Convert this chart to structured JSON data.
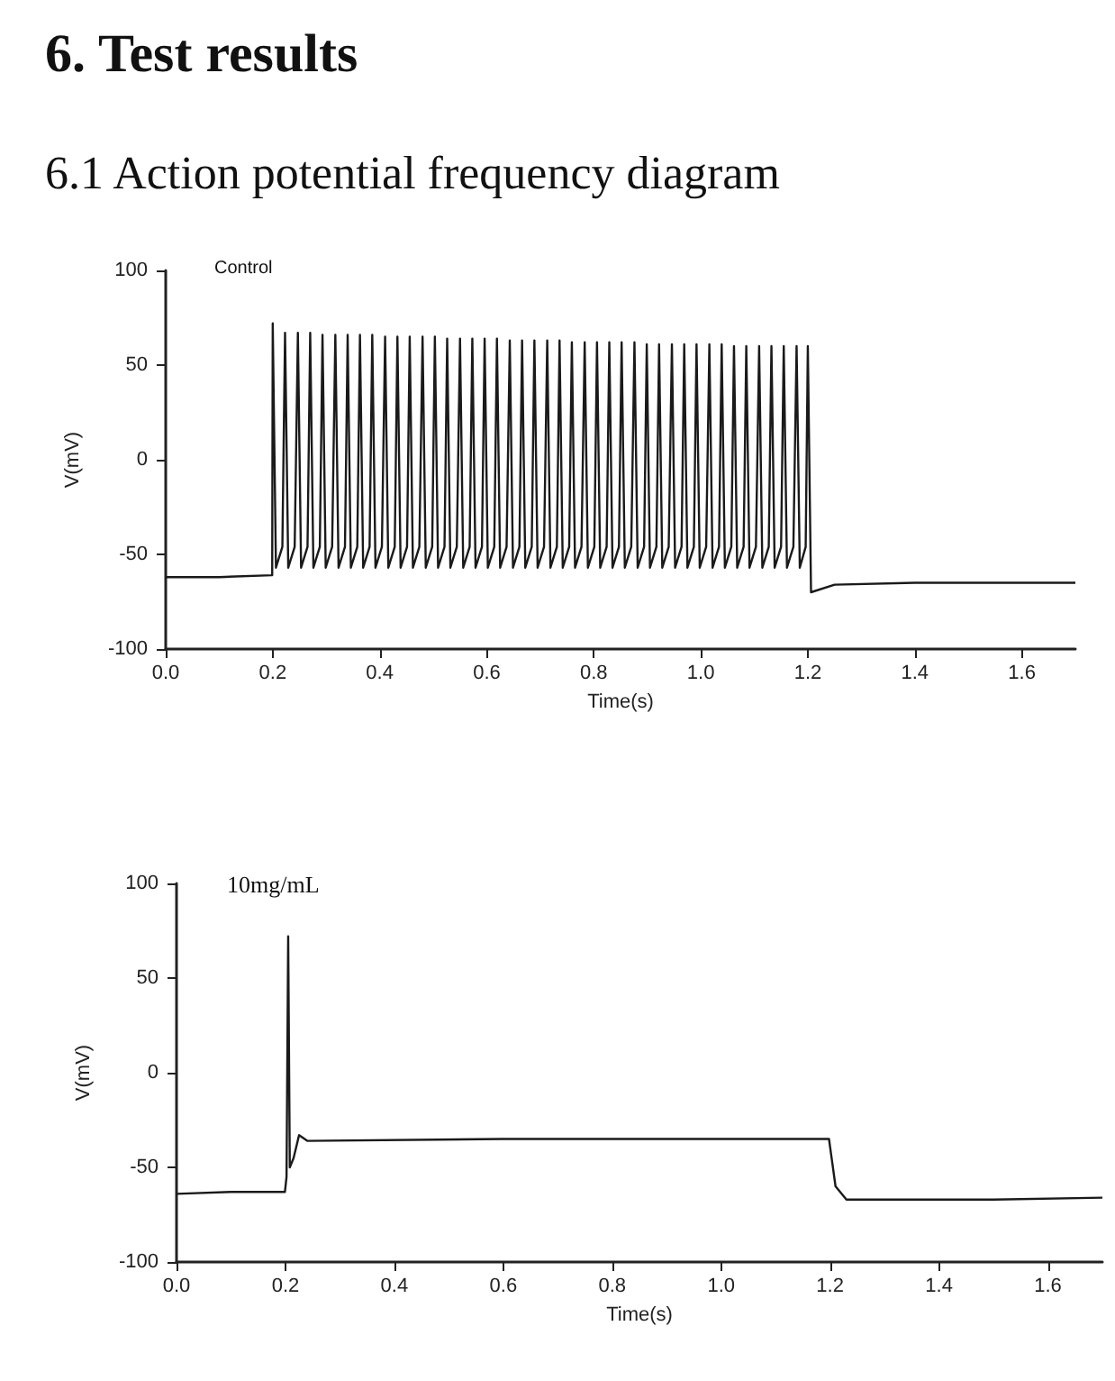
{
  "chart_data": [
    {
      "type": "line",
      "title": "6. Test results",
      "subtitle": "6.1 Action potential frequency diagram",
      "xlabel": "Time(s)",
      "ylabel": "V(mV)",
      "annotations": [
        "Control"
      ],
      "xlim": [
        0,
        1.7
      ],
      "xticks": [
        {
          "value": 0,
          "label": "0.0"
        },
        {
          "value": 0.2,
          "label": "0.2"
        },
        {
          "value": 0.4,
          "label": "0.4"
        },
        {
          "value": 0.6,
          "label": "0.6"
        },
        {
          "value": 0.8,
          "label": "0.8"
        },
        {
          "value": 1.0,
          "label": "1.0"
        },
        {
          "value": 1.2,
          "label": "1.2"
        },
        {
          "value": 1.4,
          "label": "1.4"
        },
        {
          "value": 1.6,
          "label": "1.6"
        }
      ],
      "ylim": [
        -100,
        100
      ],
      "yticks": [
        -100,
        -50,
        0,
        50,
        100
      ],
      "grid": false,
      "marker": "none",
      "line_style": "solid",
      "series": [
        {
          "color": "#1a1a1a",
          "x": [
            0,
            0.1,
            0.199,
            0.2,
            0.206,
            0.218,
            0.223,
            0.229,
            0.241,
            0.247,
            0.253,
            0.265,
            0.27,
            0.276,
            0.288,
            0.293,
            0.299,
            0.311,
            0.317,
            0.323,
            0.335,
            0.34,
            0.346,
            0.358,
            0.363,
            0.369,
            0.381,
            0.386,
            0.392,
            0.404,
            0.41,
            0.416,
            0.428,
            0.433,
            0.439,
            0.451,
            0.456,
            0.462,
            0.474,
            0.48,
            0.486,
            0.498,
            0.503,
            0.509,
            0.521,
            0.526,
            0.532,
            0.544,
            0.55,
            0.556,
            0.568,
            0.573,
            0.579,
            0.591,
            0.596,
            0.602,
            0.614,
            0.619,
            0.625,
            0.637,
            0.643,
            0.649,
            0.661,
            0.666,
            0.672,
            0.684,
            0.689,
            0.695,
            0.707,
            0.713,
            0.719,
            0.731,
            0.736,
            0.742,
            0.754,
            0.759,
            0.765,
            0.777,
            0.783,
            0.789,
            0.801,
            0.806,
            0.812,
            0.824,
            0.829,
            0.835,
            0.847,
            0.852,
            0.858,
            0.87,
            0.876,
            0.882,
            0.894,
            0.899,
            0.905,
            0.917,
            0.922,
            0.928,
            0.94,
            0.946,
            0.952,
            0.964,
            0.969,
            0.975,
            0.987,
            0.992,
            0.998,
            1.01,
            1.016,
            1.022,
            1.034,
            1.039,
            1.045,
            1.057,
            1.062,
            1.068,
            1.08,
            1.085,
            1.091,
            1.103,
            1.109,
            1.115,
            1.127,
            1.132,
            1.138,
            1.15,
            1.155,
            1.161,
            1.173,
            1.179,
            1.185,
            1.196,
            1.2,
            1.206,
            1.25,
            1.4,
            1.7
          ],
          "values": [
            -62,
            -62,
            -61,
            72,
            -57,
            -46,
            67,
            -57,
            -46,
            67,
            -57,
            -46,
            67,
            -57,
            -46,
            66,
            -57,
            -46,
            66,
            -57,
            -46,
            66,
            -57,
            -46,
            66,
            -57,
            -46,
            66,
            -57,
            -46,
            65,
            -57,
            -46,
            65,
            -57,
            -46,
            65,
            -57,
            -46,
            65,
            -57,
            -46,
            65,
            -57,
            -46,
            64,
            -57,
            -46,
            64,
            -57,
            -46,
            64,
            -57,
            -46,
            64,
            -57,
            -46,
            64,
            -57,
            -46,
            63,
            -57,
            -46,
            63,
            -57,
            -46,
            63,
            -57,
            -46,
            63,
            -57,
            -46,
            63,
            -57,
            -46,
            62,
            -57,
            -46,
            62,
            -57,
            -46,
            62,
            -57,
            -46,
            62,
            -57,
            -46,
            62,
            -57,
            -46,
            62,
            -57,
            -46,
            61,
            -57,
            -46,
            61,
            -57,
            -46,
            61,
            -57,
            -46,
            61,
            -57,
            -46,
            61,
            -57,
            -46,
            61,
            -57,
            -46,
            61,
            -57,
            -46,
            60,
            -57,
            -46,
            60,
            -57,
            -46,
            60,
            -57,
            -46,
            60,
            -57,
            -46,
            60,
            -57,
            -46,
            60,
            -57,
            -46,
            60,
            -70,
            -66,
            -65,
            -65
          ]
        }
      ]
    },
    {
      "type": "line",
      "xlabel": "Time(s)",
      "ylabel": "V(mV)",
      "annotations": [
        "10mg/mL"
      ],
      "xlim": [
        0,
        1.7
      ],
      "xticks": [
        {
          "value": 0,
          "label": "0.0"
        },
        {
          "value": 0.2,
          "label": "0.2"
        },
        {
          "value": 0.4,
          "label": "0.4"
        },
        {
          "value": 0.6,
          "label": "0.6"
        },
        {
          "value": 0.8,
          "label": "0.8"
        },
        {
          "value": 1.0,
          "label": "1.0"
        },
        {
          "value": 1.2,
          "label": "1.2"
        },
        {
          "value": 1.4,
          "label": "1.4"
        },
        {
          "value": 1.6,
          "label": "1.6"
        }
      ],
      "ylim": [
        -100,
        100
      ],
      "yticks": [
        -100,
        -50,
        0,
        50,
        100
      ],
      "grid": false,
      "marker": "none",
      "line_style": "solid",
      "series": [
        {
          "color": "#1a1a1a",
          "x": [
            0,
            0.1,
            0.199,
            0.202,
            0.205,
            0.208,
            0.215,
            0.225,
            0.24,
            0.6,
            1.0,
            1.198,
            1.21,
            1.23,
            1.5,
            1.7
          ],
          "values": [
            -64,
            -63,
            -63,
            -55,
            72,
            -50,
            -45,
            -33,
            -36,
            -35,
            -35,
            -35,
            -60,
            -67,
            -67,
            -66
          ]
        }
      ]
    }
  ]
}
